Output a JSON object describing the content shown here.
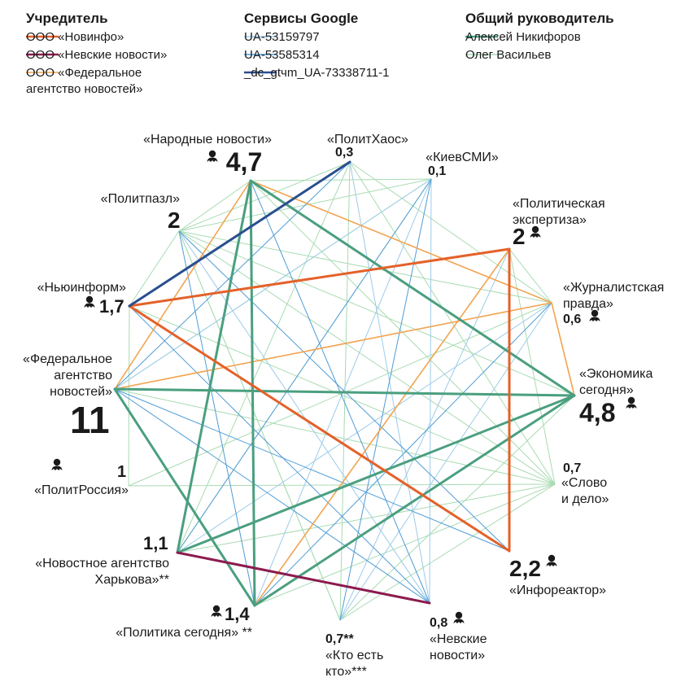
{
  "legend": {
    "groups": [
      {
        "title": "Учредитель",
        "items": [
          {
            "lines": [
              "ООО «Новинфо»"
            ],
            "color": "#e4612a"
          },
          {
            "lines": [
              "ООО «Невские новости»"
            ],
            "color": "#8c1b4f"
          },
          {
            "lines": [
              "ООО «Федеральное",
              "агентство новостей»"
            ],
            "color": "#f2a450"
          }
        ]
      },
      {
        "title": "Сервисы Google",
        "items": [
          {
            "lines": [
              "UA-53159797"
            ],
            "color": "#9dcbe9"
          },
          {
            "lines": [
              "UA-53585314"
            ],
            "color": "#4f9cd6"
          },
          {
            "lines": [
              "_dc_gtчm_UA-73338711-1"
            ],
            "color": "#2a4f8f"
          }
        ]
      },
      {
        "title": "Общий руководитель",
        "items": [
          {
            "lines": [
              "Алексей Никифоров"
            ],
            "color": "#4a9f7f"
          },
          {
            "lines": [
              "Олег Васильев"
            ],
            "color": "#a8dbb2"
          }
        ]
      }
    ]
  },
  "nodes": [
    {
      "id": "narodnye",
      "name_lines": [
        "«Народные новости»"
      ],
      "value": "4,7",
      "icon": true
    },
    {
      "id": "polithaos",
      "name_lines": [
        "«ПолитХаос»"
      ],
      "value": "0,3",
      "icon": false
    },
    {
      "id": "kievsmi",
      "name_lines": [
        "«КиевСМИ»"
      ],
      "value": "0,1",
      "icon": false
    },
    {
      "id": "polexp",
      "name_lines": [
        "«Политическая",
        "экспертиза»"
      ],
      "value": "2",
      "icon": true
    },
    {
      "id": "zhurprav",
      "name_lines": [
        "«Журналистская",
        "правда»"
      ],
      "value": "0,6",
      "icon": true
    },
    {
      "id": "ekonom",
      "name_lines": [
        "«Экономика",
        "сегодня»"
      ],
      "value": "4,8",
      "icon": true
    },
    {
      "id": "slovo",
      "name_lines": [
        "«Слово",
        "и дело»"
      ],
      "value": "0,7",
      "icon": false
    },
    {
      "id": "inforeaktor",
      "name_lines": [
        "«Инфореактор»"
      ],
      "value": "2,2",
      "icon": true
    },
    {
      "id": "nevskie",
      "name_lines": [
        "«Невские",
        "новости»"
      ],
      "value": "0,8",
      "icon": true
    },
    {
      "id": "kto",
      "name_lines": [
        "«Кто есть",
        "кто»***"
      ],
      "value": "0,7**",
      "icon": false
    },
    {
      "id": "polsegodnya",
      "name_lines": [
        "«Политика сегодня» **"
      ],
      "value": "1,4",
      "icon": true
    },
    {
      "id": "harkov",
      "name_lines": [
        "«Новостное агентство",
        "Харькова»**"
      ],
      "value": "1,1",
      "icon": false
    },
    {
      "id": "politrossiya",
      "name_lines": [
        "«ПолитРоссия»"
      ],
      "value": "1",
      "icon": true
    },
    {
      "id": "fan",
      "name_lines": [
        "«Федеральное",
        "агентство",
        "новостей»"
      ],
      "value": "11",
      "icon": false
    },
    {
      "id": "newinform",
      "name_lines": [
        "«Ньюинформ»"
      ],
      "value": "1,7",
      "icon": true
    },
    {
      "id": "politpazl",
      "name_lines": [
        "«Политпазл»"
      ],
      "value": "2",
      "icon": false
    }
  ],
  "edge_groups": [
    {
      "legend": "Олег Васильев",
      "color": "#a8dbb2",
      "width": 1,
      "pairs": [
        [
          "polithaos",
          "politpazl"
        ],
        [
          "polithaos",
          "newinform"
        ],
        [
          "polithaos",
          "zhurprav"
        ],
        [
          "polithaos",
          "slovo"
        ],
        [
          "polithaos",
          "kto"
        ],
        [
          "narodnye",
          "politpazl"
        ],
        [
          "narodnye",
          "slovo"
        ],
        [
          "narodnye",
          "kievsmi"
        ],
        [
          "politpazl",
          "newinform"
        ],
        [
          "politpazl",
          "slovo"
        ],
        [
          "politpazl",
          "ekonom"
        ],
        [
          "politpazl",
          "zhurprav"
        ],
        [
          "politpazl",
          "kto"
        ],
        [
          "newinform",
          "politrossiya"
        ],
        [
          "newinform",
          "slovo"
        ],
        [
          "polexp",
          "zhurprav"
        ],
        [
          "polexp",
          "slovo"
        ],
        [
          "polexp",
          "newinform"
        ],
        [
          "fan",
          "slovo"
        ],
        [
          "fan",
          "kievsmi"
        ],
        [
          "polithaos",
          "harkov"
        ],
        [
          "politrossiya",
          "slovo"
        ],
        [
          "politrossiya",
          "zhurprav"
        ],
        [
          "harkov",
          "slovo"
        ],
        [
          "polsegodnya",
          "slovo"
        ],
        [
          "kto",
          "slovo"
        ],
        [
          "kto",
          "ekonom"
        ],
        [
          "kto",
          "politpazl"
        ],
        [
          "kievsmi",
          "politpazl"
        ],
        [
          "kievsmi",
          "harkov"
        ]
      ]
    },
    {
      "legend": "UA-53159797",
      "color": "#9dcbe9",
      "width": 1,
      "pairs": [
        [
          "kievsmi",
          "polsegodnya"
        ],
        [
          "kievsmi",
          "nevskie"
        ],
        [
          "kievsmi",
          "fan"
        ],
        [
          "polithaos",
          "nevskie"
        ],
        [
          "zhurprav",
          "harkov"
        ],
        [
          "zhurprav",
          "kto"
        ],
        [
          "zhurprav",
          "fan"
        ],
        [
          "politpazl",
          "nevskie"
        ],
        [
          "polexp",
          "kto"
        ]
      ]
    },
    {
      "legend": "UA-53585314",
      "color": "#4f9cd6",
      "width": 1,
      "pairs": [
        [
          "kievsmi",
          "kto"
        ],
        [
          "polithaos",
          "fan"
        ],
        [
          "zhurprav",
          "polsegodnya"
        ],
        [
          "ekonom",
          "harkov"
        ],
        [
          "ekonom",
          "fan"
        ],
        [
          "fan",
          "inforeaktor"
        ],
        [
          "fan",
          "nevskie"
        ],
        [
          "newinform",
          "nevskie"
        ],
        [
          "politpazl",
          "polsegodnya"
        ],
        [
          "politpazl",
          "inforeaktor"
        ],
        [
          "harkov",
          "kievsmi"
        ],
        [
          "nevskie",
          "narodnye"
        ],
        [
          "narodnye",
          "ekonom"
        ]
      ]
    },
    {
      "legend": "ООО «Федеральное агентство новостей»",
      "color": "#f2a450",
      "width": 1.6,
      "pairs": [
        [
          "narodnye",
          "polsegodnya"
        ],
        [
          "narodnye",
          "fan"
        ],
        [
          "narodnye",
          "zhurprav"
        ],
        [
          "fan",
          "ekonom"
        ],
        [
          "fan",
          "zhurprav"
        ],
        [
          "polexp",
          "polsegodnya"
        ],
        [
          "zhurprav",
          "ekonom"
        ],
        [
          "polsegodnya",
          "ekonom"
        ]
      ]
    },
    {
      "legend": "Алексей Никифоров",
      "color": "#4a9f7f",
      "width": 3,
      "pairs": [
        [
          "narodnye",
          "harkov"
        ],
        [
          "narodnye",
          "polsegodnya"
        ],
        [
          "narodnye",
          "ekonom"
        ],
        [
          "fan",
          "ekonom"
        ],
        [
          "fan",
          "polsegodnya"
        ],
        [
          "ekonom",
          "harkov"
        ],
        [
          "ekonom",
          "polsegodnya"
        ]
      ]
    },
    {
      "legend": "ООО «Новинфо»",
      "color": "#e4612a",
      "width": 3,
      "pairs": [
        [
          "newinform",
          "polexp"
        ],
        [
          "newinform",
          "inforeaktor"
        ],
        [
          "polexp",
          "inforeaktor"
        ]
      ]
    },
    {
      "legend": "ООО «Невские новости»",
      "color": "#8c1b4f",
      "width": 3,
      "pairs": [
        [
          "harkov",
          "nevskie"
        ]
      ]
    },
    {
      "legend": "_dc_gtчm_UA-73338711-1",
      "color": "#2a4f8f",
      "width": 3,
      "pairs": [
        [
          "newinform",
          "polithaos"
        ]
      ]
    }
  ]
}
